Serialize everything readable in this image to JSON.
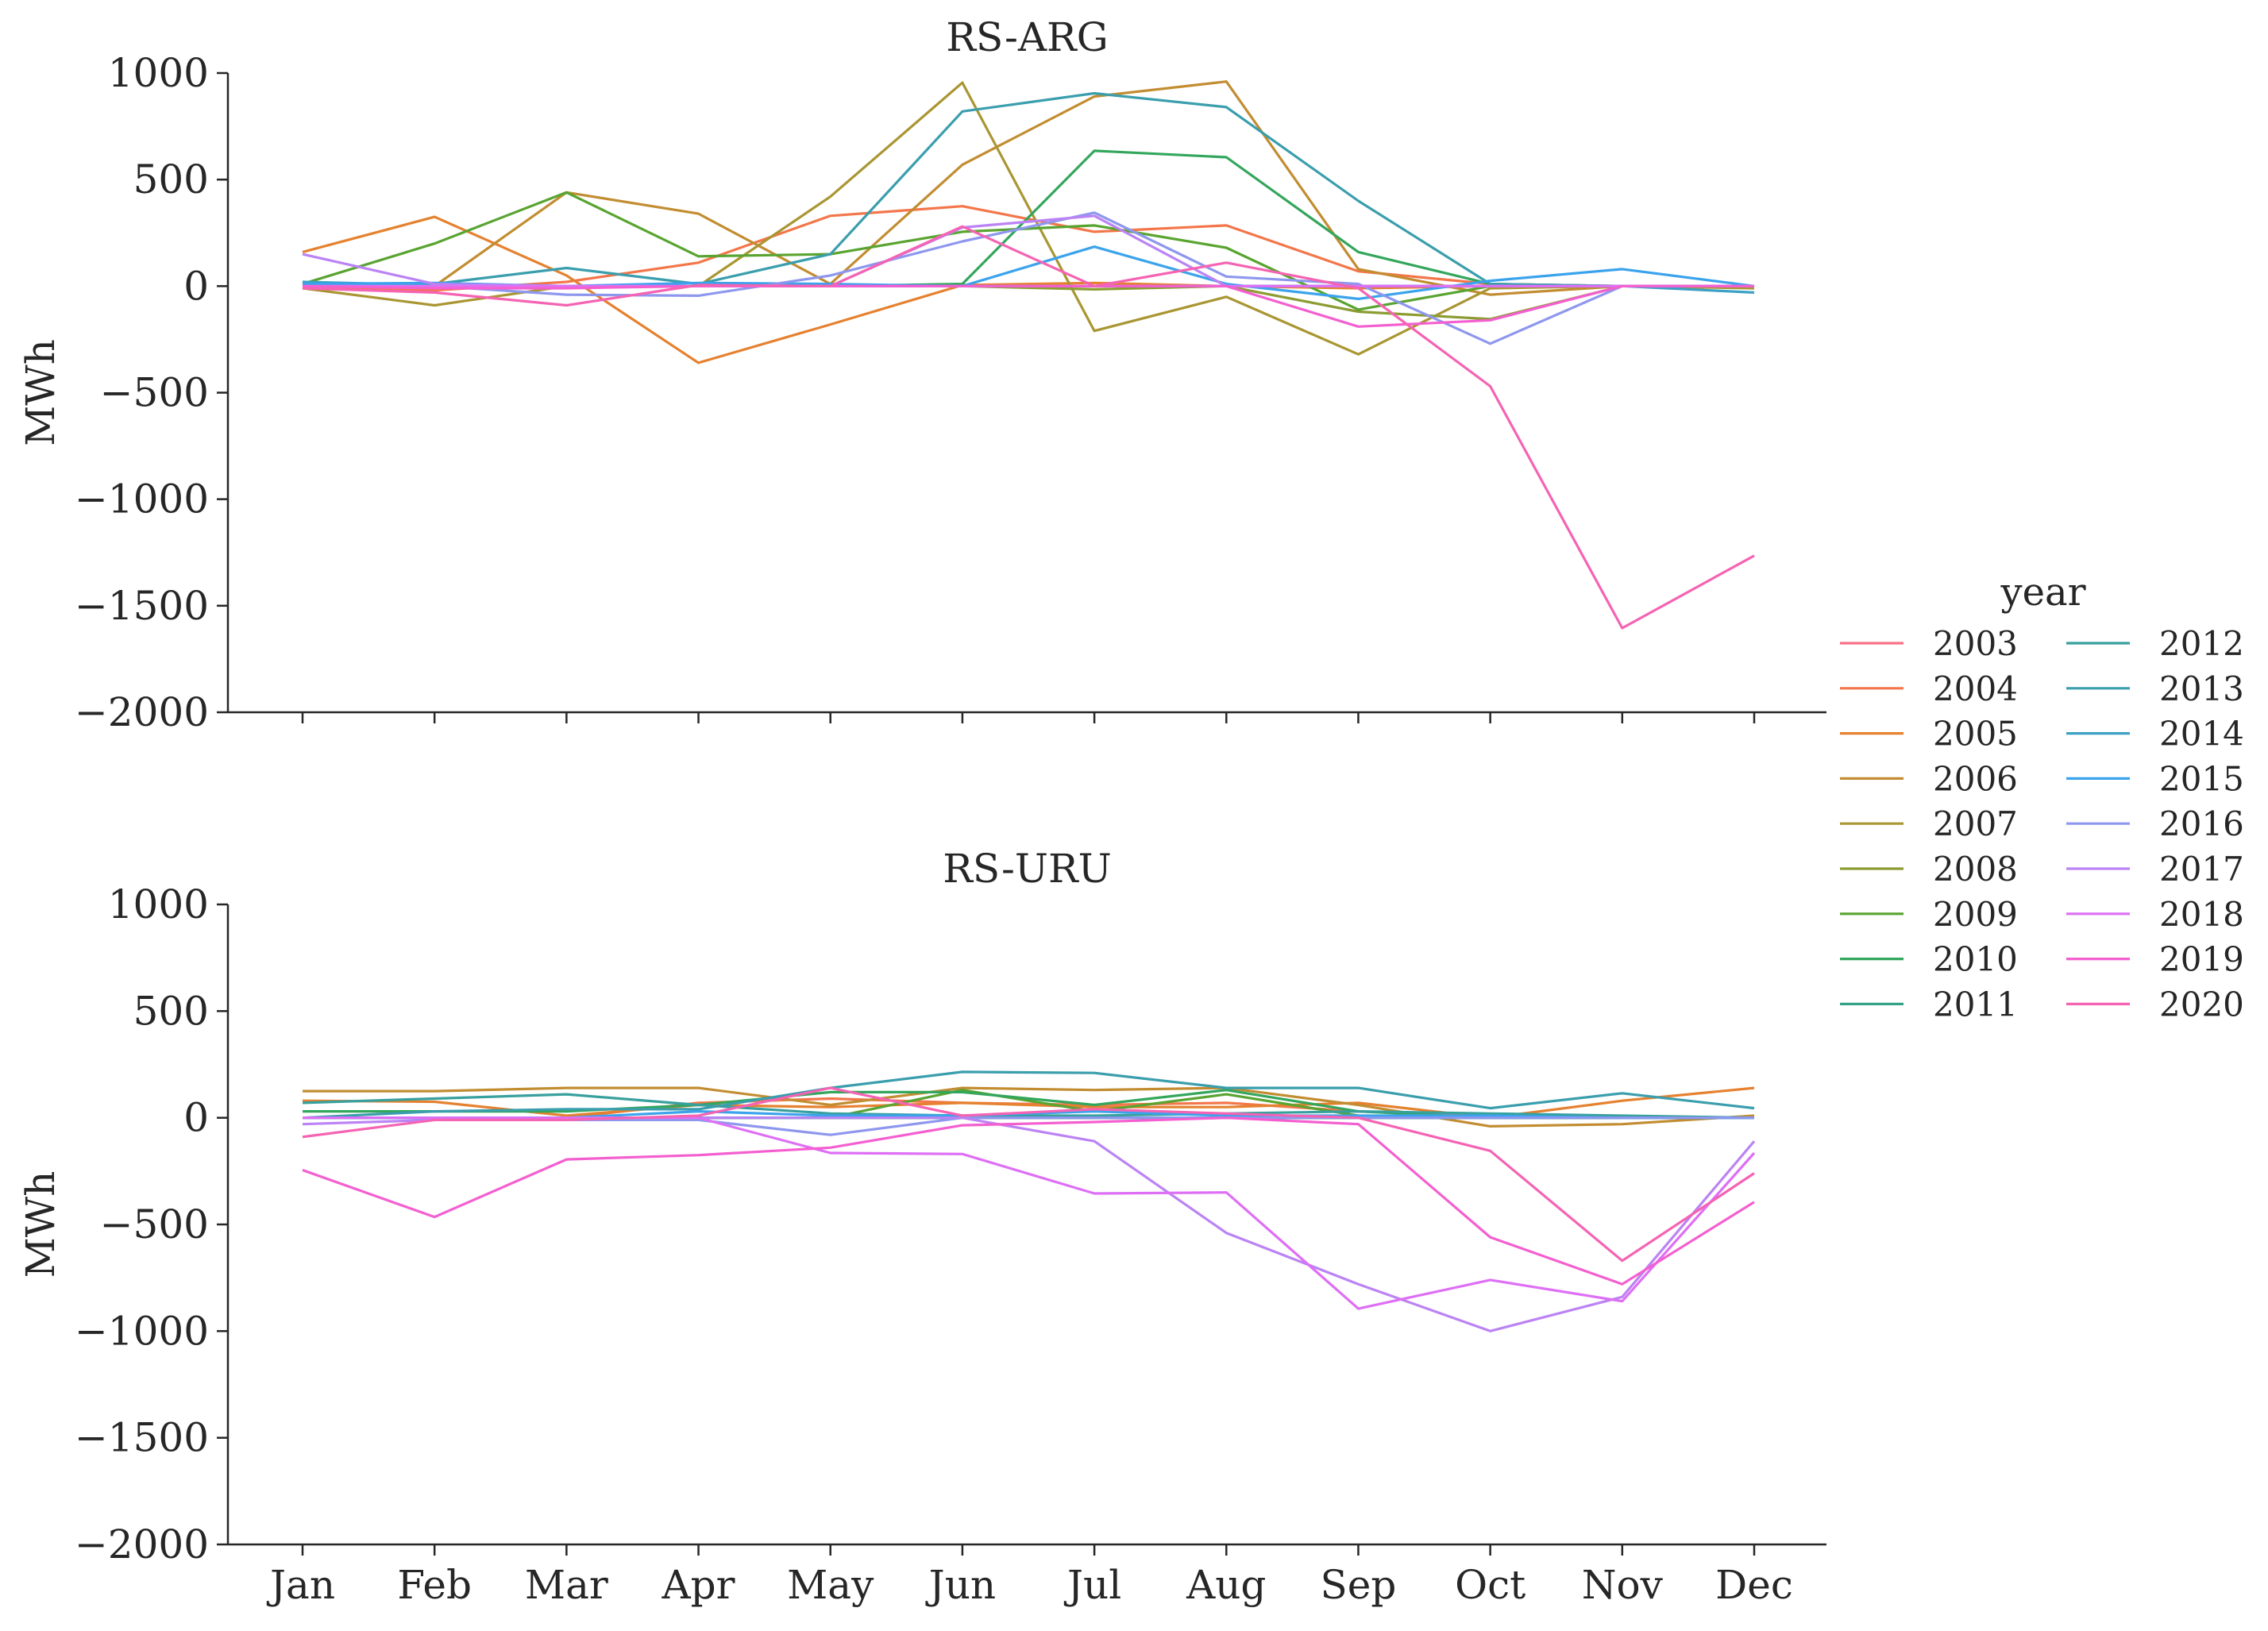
{
  "chart_data": [
    {
      "type": "line",
      "title": "RS-ARG",
      "xlabel": "",
      "ylabel": "MWh",
      "ylim": [
        -2000,
        1000
      ],
      "yticks": [
        -2000,
        -1500,
        -1000,
        -500,
        0,
        500,
        1000
      ],
      "categories": [
        "Jan",
        "Feb",
        "Mar",
        "Apr",
        "May",
        "Jun",
        "Jul",
        "Aug",
        "Sep",
        "Oct",
        "Nov",
        "Dec"
      ],
      "show_xtick_labels": false,
      "grid": false,
      "series": [
        {
          "name": "2003",
          "color": "#f77189",
          "values": [
            0,
            0,
            0,
            0,
            0,
            0,
            0,
            0,
            0,
            0,
            0,
            0
          ]
        },
        {
          "name": "2004",
          "color": "#f3764a",
          "values": [
            0,
            -20,
            20,
            110,
            330,
            375,
            255,
            285,
            70,
            10,
            0,
            0
          ]
        },
        {
          "name": "2005",
          "color": "#e5812f",
          "values": [
            160,
            325,
            50,
            -360,
            -180,
            5,
            15,
            0,
            -10,
            0,
            0,
            0
          ]
        },
        {
          "name": "2006",
          "color": "#c28d31",
          "values": [
            -5,
            0,
            440,
            340,
            10,
            570,
            890,
            960,
            80,
            -40,
            0,
            0
          ]
        },
        {
          "name": "2007",
          "color": "#a99632",
          "values": [
            -10,
            -90,
            0,
            0,
            420,
            955,
            -210,
            -50,
            -320,
            -10,
            0,
            -10
          ]
        },
        {
          "name": "2008",
          "color": "#8c9c32",
          "values": [
            0,
            0,
            0,
            0,
            0,
            0,
            -15,
            0,
            -120,
            -155,
            0,
            0
          ]
        },
        {
          "name": "2009",
          "color": "#59a431",
          "values": [
            10,
            200,
            440,
            140,
            150,
            255,
            285,
            180,
            -110,
            0,
            0,
            0
          ]
        },
        {
          "name": "2010",
          "color": "#33a65c",
          "values": [
            0,
            0,
            0,
            0,
            0,
            10,
            635,
            605,
            160,
            10,
            0,
            0
          ]
        },
        {
          "name": "2011",
          "color": "#35a287",
          "values": [
            0,
            0,
            0,
            0,
            0,
            0,
            0,
            0,
            0,
            0,
            0,
            0
          ]
        },
        {
          "name": "2012",
          "color": "#38a09d",
          "values": [
            0,
            0,
            0,
            0,
            0,
            0,
            0,
            0,
            0,
            0,
            0,
            0
          ]
        },
        {
          "name": "2013",
          "color": "#3a9ead",
          "values": [
            0,
            10,
            85,
            10,
            150,
            820,
            905,
            840,
            400,
            10,
            0,
            0
          ]
        },
        {
          "name": "2014",
          "color": "#3ca1c3",
          "values": [
            20,
            5,
            0,
            0,
            0,
            0,
            0,
            0,
            0,
            0,
            0,
            -30
          ]
        },
        {
          "name": "2015",
          "color": "#3ba3ec",
          "values": [
            10,
            15,
            0,
            15,
            10,
            0,
            185,
            10,
            -60,
            25,
            80,
            0
          ]
        },
        {
          "name": "2016",
          "color": "#8e97ee",
          "values": [
            0,
            0,
            -40,
            -45,
            50,
            210,
            345,
            45,
            10,
            -270,
            0,
            0
          ]
        },
        {
          "name": "2017",
          "color": "#bb83f4",
          "values": [
            150,
            10,
            0,
            0,
            0,
            275,
            330,
            0,
            0,
            0,
            0,
            0
          ]
        },
        {
          "name": "2018",
          "color": "#de6ff5",
          "values": [
            0,
            0,
            0,
            0,
            0,
            0,
            0,
            0,
            0,
            0,
            0,
            0
          ]
        },
        {
          "name": "2019",
          "color": "#f45fd0",
          "values": [
            0,
            -10,
            -10,
            0,
            0,
            0,
            0,
            0,
            -190,
            -160,
            0,
            0
          ]
        },
        {
          "name": "2020",
          "color": "#f563b3",
          "values": [
            -10,
            -30,
            -90,
            5,
            0,
            280,
            0,
            110,
            -10,
            -470,
            -1605,
            -1265
          ]
        }
      ]
    },
    {
      "type": "line",
      "title": "RS-URU",
      "xlabel": "",
      "ylabel": "MWh",
      "ylim": [
        -2000,
        1000
      ],
      "yticks": [
        -2000,
        -1500,
        -1000,
        -500,
        0,
        500,
        1000
      ],
      "categories": [
        "Jan",
        "Feb",
        "Mar",
        "Apr",
        "May",
        "Jun",
        "Jul",
        "Aug",
        "Sep",
        "Oct",
        "Nov",
        "Dec"
      ],
      "show_xtick_labels": true,
      "grid": false,
      "series": [
        {
          "name": "2003",
          "color": "#f77189",
          "values": [
            0,
            0,
            0,
            0,
            0,
            0,
            0,
            0,
            0,
            0,
            0,
            0
          ]
        },
        {
          "name": "2004",
          "color": "#f3764a",
          "values": [
            0,
            0,
            0,
            70,
            90,
            70,
            60,
            70,
            30,
            10,
            0,
            0
          ]
        },
        {
          "name": "2005",
          "color": "#e5812f",
          "values": [
            80,
            75,
            10,
            60,
            50,
            70,
            50,
            50,
            70,
            0,
            80,
            140
          ]
        },
        {
          "name": "2006",
          "color": "#c28d31",
          "values": [
            125,
            125,
            140,
            140,
            60,
            140,
            130,
            140,
            60,
            -40,
            -30,
            10
          ]
        },
        {
          "name": "2007",
          "color": "#a99632",
          "values": [
            0,
            0,
            0,
            0,
            0,
            0,
            0,
            0,
            0,
            0,
            0,
            0
          ]
        },
        {
          "name": "2008",
          "color": "#8c9c32",
          "values": [
            0,
            0,
            0,
            0,
            0,
            0,
            0,
            0,
            0,
            0,
            0,
            0
          ]
        },
        {
          "name": "2009",
          "color": "#59a431",
          "values": [
            0,
            0,
            0,
            0,
            0,
            130,
            30,
            110,
            10,
            0,
            0,
            0
          ]
        },
        {
          "name": "2010",
          "color": "#33a65c",
          "values": [
            30,
            30,
            30,
            60,
            120,
            120,
            60,
            130,
            30,
            0,
            0,
            0
          ]
        },
        {
          "name": "2011",
          "color": "#35a287",
          "values": [
            0,
            0,
            0,
            0,
            0,
            0,
            0,
            0,
            0,
            0,
            0,
            0
          ]
        },
        {
          "name": "2012",
          "color": "#38a09d",
          "values": [
            70,
            90,
            110,
            60,
            20,
            10,
            10,
            20,
            30,
            20,
            10,
            0
          ]
        },
        {
          "name": "2013",
          "color": "#3a9ead",
          "values": [
            0,
            30,
            40,
            40,
            140,
            215,
            210,
            140,
            140,
            45,
            115,
            45
          ]
        },
        {
          "name": "2014",
          "color": "#3ca1c3",
          "values": [
            0,
            0,
            0,
            0,
            0,
            0,
            0,
            0,
            0,
            0,
            0,
            0
          ]
        },
        {
          "name": "2015",
          "color": "#3ba3ec",
          "values": [
            0,
            0,
            0,
            30,
            10,
            10,
            30,
            10,
            10,
            10,
            0,
            0
          ]
        },
        {
          "name": "2016",
          "color": "#8e97ee",
          "values": [
            0,
            0,
            -10,
            -10,
            -80,
            0,
            0,
            0,
            0,
            0,
            0,
            0
          ]
        },
        {
          "name": "2017",
          "color": "#bb83f4",
          "values": [
            -30,
            -10,
            0,
            0,
            0,
            0,
            -110,
            -540,
            -780,
            -1000,
            -840,
            -110
          ]
        },
        {
          "name": "2018",
          "color": "#de6ff5",
          "values": [
            0,
            0,
            0,
            0,
            -165,
            -170,
            -355,
            -350,
            -895,
            -760,
            -860,
            -165
          ]
        },
        {
          "name": "2019",
          "color": "#f45fd0",
          "values": [
            -245,
            -465,
            -195,
            -175,
            -140,
            -35,
            -20,
            0,
            -30,
            -560,
            -780,
            -395
          ]
        },
        {
          "name": "2020",
          "color": "#f563b3",
          "values": [
            -90,
            -10,
            -10,
            10,
            140,
            10,
            40,
            20,
            0,
            -155,
            -670,
            -260
          ]
        }
      ]
    }
  ],
  "legend": {
    "title": "year",
    "placement": "right"
  }
}
